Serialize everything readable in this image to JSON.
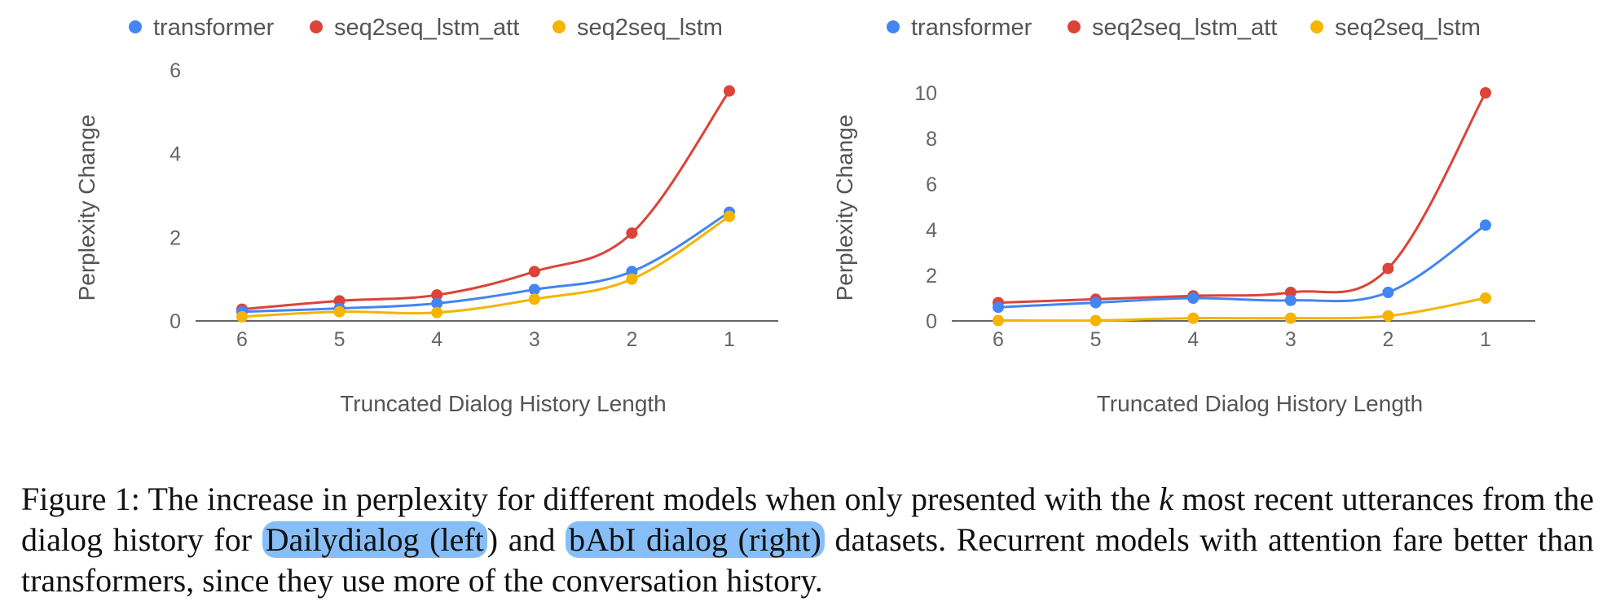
{
  "chart_data": [
    {
      "type": "line",
      "x": [
        6,
        5,
        4,
        3,
        2,
        1
      ],
      "xlabel": "Truncated Dialog History Length",
      "ylabel": "Perplexity Change",
      "ylim": [
        0,
        6
      ],
      "yticks": [
        0,
        2,
        4,
        6
      ],
      "legend_position": "top",
      "grid": false,
      "series": [
        {
          "name": "transformer",
          "color": "#4285F4",
          "values": [
            0.22,
            0.3,
            0.42,
            0.75,
            1.18,
            2.6
          ]
        },
        {
          "name": "seq2seq_lstm_att",
          "color": "#DB4437",
          "values": [
            0.28,
            0.48,
            0.62,
            1.18,
            2.1,
            5.5
          ]
        },
        {
          "name": "seq2seq_lstm",
          "color": "#F4B400",
          "values": [
            0.1,
            0.22,
            0.2,
            0.52,
            1.0,
            2.5
          ]
        }
      ]
    },
    {
      "type": "line",
      "x": [
        6,
        5,
        4,
        3,
        2,
        1
      ],
      "xlabel": "Truncated Dialog History Length",
      "ylabel": "Perplexity Change",
      "ylim": [
        0,
        10
      ],
      "yticks": [
        0,
        2,
        4,
        6,
        8,
        10
      ],
      "legend_position": "top",
      "grid": false,
      "series": [
        {
          "name": "transformer",
          "color": "#4285F4",
          "values": [
            0.6,
            0.8,
            1.0,
            0.9,
            1.25,
            4.2
          ]
        },
        {
          "name": "seq2seq_lstm_att",
          "color": "#DB4437",
          "values": [
            0.8,
            0.95,
            1.1,
            1.25,
            2.3,
            10.0
          ]
        },
        {
          "name": "seq2seq_lstm",
          "color": "#F4B400",
          "values": [
            0.02,
            0.02,
            0.12,
            0.12,
            0.22,
            1.0
          ]
        }
      ]
    }
  ],
  "caption": {
    "part1": "Figure 1: The increase in perplexity for different models when only presented with the ",
    "k": "k",
    "part2": " most recent utterances from the dialog history for ",
    "highlight1": "Dailydialog (left",
    "part3": ") and ",
    "highlight2": "bAbI dialog (right)",
    "part4": " datasets. Recurrent models with attention fare better than transformers, since they use more of the conversation history."
  }
}
